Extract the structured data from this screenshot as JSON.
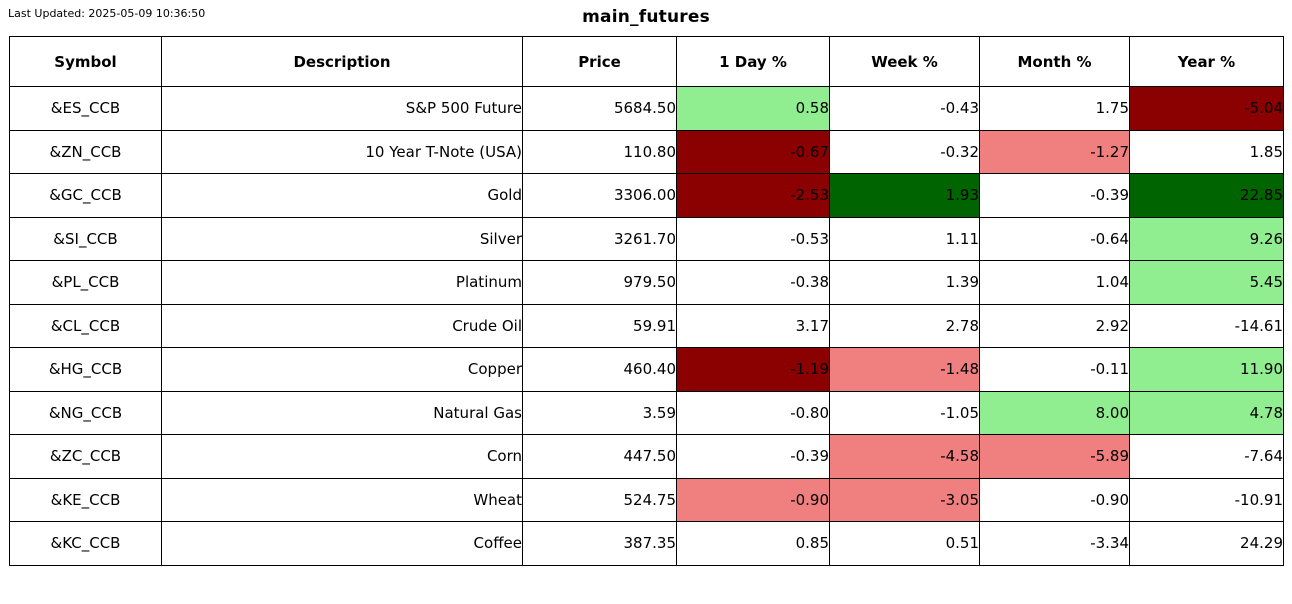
{
  "header": {
    "last_updated": "Last Updated: 2025-05-09 10:36:50",
    "title": "main_futures"
  },
  "colors": {
    "white": "#FFFFFF",
    "light_green": "#90EE90",
    "dark_green": "#006400",
    "light_red": "#F08080",
    "dark_red": "#8B0000",
    "border": "#000000",
    "text": "#000000"
  },
  "chart_data": {
    "type": "table",
    "title": "main_futures",
    "columns": [
      "Symbol",
      "Description",
      "Price",
      "1 Day %",
      "Week %",
      "Month %",
      "Year %"
    ],
    "rows": [
      {
        "symbol": "&ES_CCB",
        "description": "S&P 500 Future",
        "price": "5684.50",
        "changes": [
          {
            "value": "0.58",
            "bg": "light_green"
          },
          {
            "value": "-0.43",
            "bg": "white"
          },
          {
            "value": "1.75",
            "bg": "white"
          },
          {
            "value": "-5.04",
            "bg": "dark_red"
          }
        ]
      },
      {
        "symbol": "&ZN_CCB",
        "description": "10 Year T-Note (USA)",
        "price": "110.80",
        "changes": [
          {
            "value": "-0.67",
            "bg": "dark_red"
          },
          {
            "value": "-0.32",
            "bg": "white"
          },
          {
            "value": "-1.27",
            "bg": "light_red"
          },
          {
            "value": "1.85",
            "bg": "white"
          }
        ]
      },
      {
        "symbol": "&GC_CCB",
        "description": "Gold",
        "price": "3306.00",
        "changes": [
          {
            "value": "-2.53",
            "bg": "dark_red"
          },
          {
            "value": "1.93",
            "bg": "dark_green"
          },
          {
            "value": "-0.39",
            "bg": "white"
          },
          {
            "value": "22.85",
            "bg": "dark_green"
          }
        ]
      },
      {
        "symbol": "&SI_CCB",
        "description": "Silver",
        "price": "3261.70",
        "changes": [
          {
            "value": "-0.53",
            "bg": "white"
          },
          {
            "value": "1.11",
            "bg": "white"
          },
          {
            "value": "-0.64",
            "bg": "white"
          },
          {
            "value": "9.26",
            "bg": "light_green"
          }
        ]
      },
      {
        "symbol": "&PL_CCB",
        "description": "Platinum",
        "price": "979.50",
        "changes": [
          {
            "value": "-0.38",
            "bg": "white"
          },
          {
            "value": "1.39",
            "bg": "white"
          },
          {
            "value": "1.04",
            "bg": "white"
          },
          {
            "value": "5.45",
            "bg": "light_green"
          }
        ]
      },
      {
        "symbol": "&CL_CCB",
        "description": "Crude Oil",
        "price": "59.91",
        "changes": [
          {
            "value": "3.17",
            "bg": "white"
          },
          {
            "value": "2.78",
            "bg": "white"
          },
          {
            "value": "2.92",
            "bg": "white"
          },
          {
            "value": "-14.61",
            "bg": "white"
          }
        ]
      },
      {
        "symbol": "&HG_CCB",
        "description": "Copper",
        "price": "460.40",
        "changes": [
          {
            "value": "-1.19",
            "bg": "dark_red"
          },
          {
            "value": "-1.48",
            "bg": "light_red"
          },
          {
            "value": "-0.11",
            "bg": "white"
          },
          {
            "value": "11.90",
            "bg": "light_green"
          }
        ]
      },
      {
        "symbol": "&NG_CCB",
        "description": "Natural Gas",
        "price": "3.59",
        "changes": [
          {
            "value": "-0.80",
            "bg": "white"
          },
          {
            "value": "-1.05",
            "bg": "white"
          },
          {
            "value": "8.00",
            "bg": "light_green"
          },
          {
            "value": "4.78",
            "bg": "light_green"
          }
        ]
      },
      {
        "symbol": "&ZC_CCB",
        "description": "Corn",
        "price": "447.50",
        "changes": [
          {
            "value": "-0.39",
            "bg": "white"
          },
          {
            "value": "-4.58",
            "bg": "light_red"
          },
          {
            "value": "-5.89",
            "bg": "light_red"
          },
          {
            "value": "-7.64",
            "bg": "white"
          }
        ]
      },
      {
        "symbol": "&KE_CCB",
        "description": "Wheat",
        "price": "524.75",
        "changes": [
          {
            "value": "-0.90",
            "bg": "light_red"
          },
          {
            "value": "-3.05",
            "bg": "light_red"
          },
          {
            "value": "-0.90",
            "bg": "white"
          },
          {
            "value": "-10.91",
            "bg": "white"
          }
        ]
      },
      {
        "symbol": "&KC_CCB",
        "description": "Coffee",
        "price": "387.35",
        "changes": [
          {
            "value": "0.85",
            "bg": "white"
          },
          {
            "value": "0.51",
            "bg": "white"
          },
          {
            "value": "-3.34",
            "bg": "white"
          },
          {
            "value": "24.29",
            "bg": "white"
          }
        ]
      }
    ]
  }
}
